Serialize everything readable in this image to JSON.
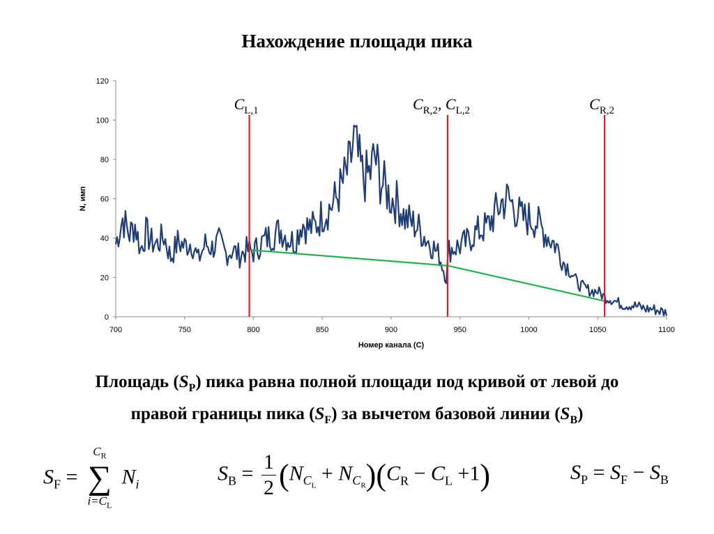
{
  "title": "Нахождение площади пика",
  "chart_data": {
    "type": "line",
    "xlabel": "Номер канала (С)",
    "ylabel": "N, имп",
    "xlim": [
      700,
      1100
    ],
    "ylim": [
      0,
      120
    ],
    "xticks": [
      "700",
      "750",
      "800",
      "850",
      "900",
      "950",
      "1000",
      "1050",
      "1100"
    ],
    "yticks": [
      "0",
      "20",
      "40",
      "60",
      "80",
      "100",
      "120"
    ],
    "series": [
      {
        "name": "",
        "color": "#1f3e78",
        "points": [
          [
            700,
            37
          ],
          [
            705,
            50
          ],
          [
            710,
            42
          ],
          [
            714,
            47
          ],
          [
            718,
            34
          ],
          [
            722,
            43
          ],
          [
            726,
            38
          ],
          [
            730,
            37
          ],
          [
            735,
            41
          ],
          [
            740,
            30
          ],
          [
            745,
            38
          ],
          [
            750,
            36
          ],
          [
            755,
            38
          ],
          [
            760,
            29
          ],
          [
            765,
            37
          ],
          [
            770,
            35
          ],
          [
            775,
            38
          ],
          [
            780,
            32
          ],
          [
            785,
            34
          ],
          [
            790,
            31
          ],
          [
            795,
            34
          ],
          [
            800,
            33
          ],
          [
            805,
            37
          ],
          [
            810,
            40
          ],
          [
            815,
            42
          ],
          [
            820,
            44
          ],
          [
            825,
            40
          ],
          [
            830,
            38
          ],
          [
            835,
            48
          ],
          [
            840,
            45
          ],
          [
            845,
            46
          ],
          [
            850,
            52
          ],
          [
            855,
            55
          ],
          [
            860,
            60
          ],
          [
            865,
            68
          ],
          [
            870,
            77
          ],
          [
            873,
            90
          ],
          [
            876,
            80
          ],
          [
            880,
            70
          ],
          [
            885,
            73
          ],
          [
            888,
            82
          ],
          [
            892,
            70
          ],
          [
            896,
            65
          ],
          [
            900,
            60
          ],
          [
            905,
            58
          ],
          [
            910,
            50
          ],
          [
            915,
            48
          ],
          [
            920,
            45
          ],
          [
            925,
            40
          ],
          [
            930,
            36
          ],
          [
            935,
            31
          ],
          [
            940,
            20
          ],
          [
            942,
            34
          ],
          [
            945,
            35
          ],
          [
            950,
            36
          ],
          [
            955,
            38
          ],
          [
            960,
            42
          ],
          [
            965,
            44
          ],
          [
            970,
            46
          ],
          [
            975,
            52
          ],
          [
            980,
            58
          ],
          [
            985,
            60
          ],
          [
            990,
            55
          ],
          [
            995,
            50
          ],
          [
            1000,
            50
          ],
          [
            1005,
            49
          ],
          [
            1010,
            44
          ],
          [
            1015,
            40
          ],
          [
            1020,
            36
          ],
          [
            1025,
            28
          ],
          [
            1030,
            24
          ],
          [
            1035,
            17
          ],
          [
            1040,
            15
          ],
          [
            1045,
            13
          ],
          [
            1050,
            13
          ],
          [
            1055,
            10
          ],
          [
            1060,
            9
          ],
          [
            1065,
            7
          ],
          [
            1070,
            6
          ],
          [
            1075,
            6
          ],
          [
            1080,
            5
          ],
          [
            1085,
            4
          ],
          [
            1090,
            4
          ],
          [
            1095,
            3
          ],
          [
            1100,
            2
          ]
        ]
      },
      {
        "name": "",
        "color": "#22b14c",
        "points": [
          [
            797,
            34
          ],
          [
            941,
            26
          ],
          [
            1055,
            8
          ]
        ]
      }
    ],
    "markers": [
      {
        "x": 797,
        "label_base": "C",
        "label_sub": "L,1"
      },
      {
        "x": 941,
        "label_base": "C",
        "label_sub": "R,2",
        "label_mid": ", C",
        "label_sub2": "L,2"
      },
      {
        "x": 1055,
        "label_base": "C",
        "label_sub": "R,2"
      }
    ],
    "marker_color": "#e02020",
    "grid": false
  },
  "description": {
    "line1_a": "Площадь (",
    "line1_S": "S",
    "line1_sub": "P",
    "line1_b": ") пика равна полной площади под кривой от левой до",
    "line2_a": "правой границы пика (",
    "line2_S": "S",
    "line2_sub": "F",
    "line2_b": ") за вычетом базовой линии (",
    "line2_S2": "S",
    "line2_sub2": "B",
    "line2_c": ")"
  },
  "formulas": {
    "f1": {
      "lhs": "S",
      "lhs_sub": "F",
      "eq": "=",
      "top": "C",
      "top_sub": "R",
      "bottom": "i=C",
      "bottom_sub": "L",
      "sum": "∑",
      "term": "N",
      "term_sub": "i"
    },
    "f2": {
      "lhs": "S",
      "lhs_sub": "B",
      "eq": "=",
      "num": "1",
      "den": "2",
      "lp": "(",
      "rp": ")",
      "n1": "N",
      "n1_sub": "C",
      "n1_subsub": "L",
      "plus": "+",
      "n2": "N",
      "n2_sub": "C",
      "n2_subsub": "R",
      "c1": "C",
      "c1_sub": "R",
      "minus": "−",
      "c2": "C",
      "c2_sub": "L",
      "plus1": "+1"
    },
    "f3": {
      "lhs": "S",
      "lhs_sub": "P",
      "eq": "=",
      "a": "S",
      "a_sub": "F",
      "minus": "−",
      "b": "S",
      "b_sub": "B"
    }
  }
}
